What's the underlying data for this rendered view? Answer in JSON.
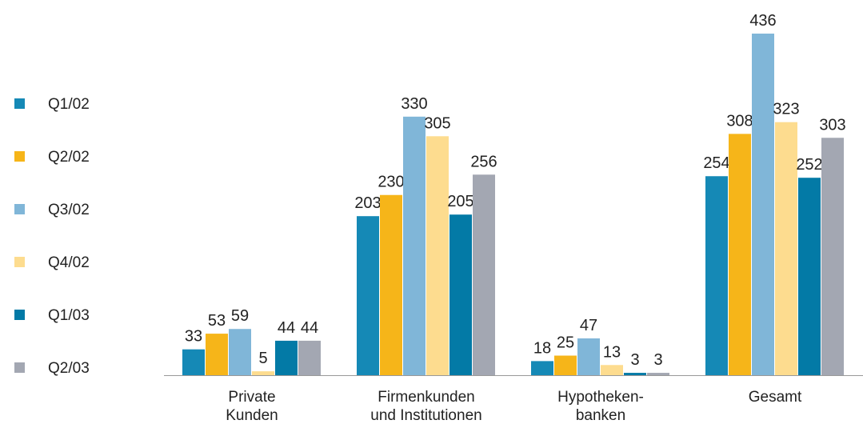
{
  "chart_data": {
    "type": "bar",
    "categories": [
      [
        "Private",
        "Kunden"
      ],
      [
        "Firmenkunden",
        "und Institutionen"
      ],
      [
        "Hypotheken-",
        "banken"
      ],
      [
        "Gesamt"
      ]
    ],
    "series": [
      {
        "name": "Q1/02",
        "color": "#1589b6",
        "values": [
          33,
          203,
          18,
          254
        ]
      },
      {
        "name": "Q2/02",
        "color": "#f6b519",
        "values": [
          53,
          230,
          25,
          308
        ]
      },
      {
        "name": "Q3/02",
        "color": "#80b6d8",
        "values": [
          59,
          330,
          47,
          436
        ]
      },
      {
        "name": "Q4/02",
        "color": "#fddc8f",
        "values": [
          5,
          305,
          13,
          323
        ]
      },
      {
        "name": "Q1/03",
        "color": "#037aa6",
        "values": [
          44,
          205,
          3,
          252
        ]
      },
      {
        "name": "Q2/03",
        "color": "#a3a7b2",
        "values": [
          44,
          256,
          3,
          303
        ]
      }
    ],
    "legend": "left"
  }
}
